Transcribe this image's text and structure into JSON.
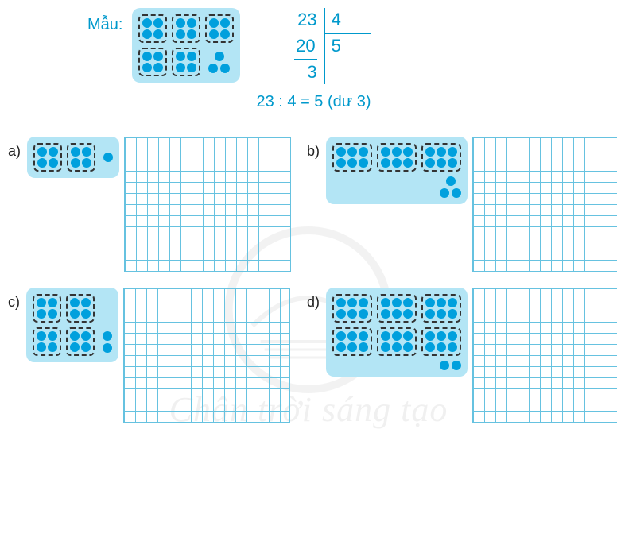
{
  "colors": {
    "accent": "#0099cc",
    "dot": "#00a0dd",
    "panel_bg": "#b3e5f5",
    "grid_line": "#66c2e0",
    "group_border": "#333333"
  },
  "example": {
    "label": "Mẫu:",
    "panel": {
      "rows": [
        {
          "groups": [
            [
              2,
              2
            ],
            [
              2,
              2
            ],
            [
              2,
              2
            ]
          ],
          "loose": 0
        },
        {
          "groups": [
            [
              2,
              2
            ],
            [
              2,
              2
            ]
          ],
          "loose": 3,
          "loose_layout": "tri"
        }
      ]
    },
    "division": {
      "dividend": "23",
      "divisor": "4",
      "subtrahend": "20",
      "quotient": "5",
      "remainder": "3"
    },
    "statement": "23 : 4 = 5 (dư 3)"
  },
  "problems": [
    {
      "label": "a)",
      "panel": {
        "rows": [
          {
            "groups": [
              [
                2,
                2
              ],
              [
                2,
                2
              ]
            ],
            "loose": 1
          }
        ]
      }
    },
    {
      "label": "b)",
      "panel": {
        "rows": [
          {
            "groups": [
              [
                3,
                2
              ],
              [
                3,
                2
              ],
              [
                3,
                2
              ]
            ],
            "loose": 0
          },
          {
            "groups": [],
            "loose": 3,
            "loose_layout": "tri",
            "align": "right"
          }
        ]
      }
    },
    {
      "label": "c)",
      "panel": {
        "rows": [
          {
            "groups": [
              [
                2,
                2
              ],
              [
                2,
                2
              ]
            ],
            "loose": 0
          },
          {
            "groups": [
              [
                2,
                2
              ],
              [
                2,
                2
              ]
            ],
            "loose": 2,
            "loose_layout": "col"
          }
        ]
      }
    },
    {
      "label": "d)",
      "panel": {
        "rows": [
          {
            "groups": [
              [
                3,
                2
              ],
              [
                3,
                2
              ],
              [
                3,
                2
              ]
            ],
            "loose": 0
          },
          {
            "groups": [
              [
                3,
                2
              ],
              [
                3,
                2
              ],
              [
                3,
                2
              ]
            ],
            "loose": 0
          },
          {
            "groups": [],
            "loose": 2,
            "align": "right"
          }
        ]
      }
    }
  ],
  "watermark_text": "Chân trời sáng tạo"
}
